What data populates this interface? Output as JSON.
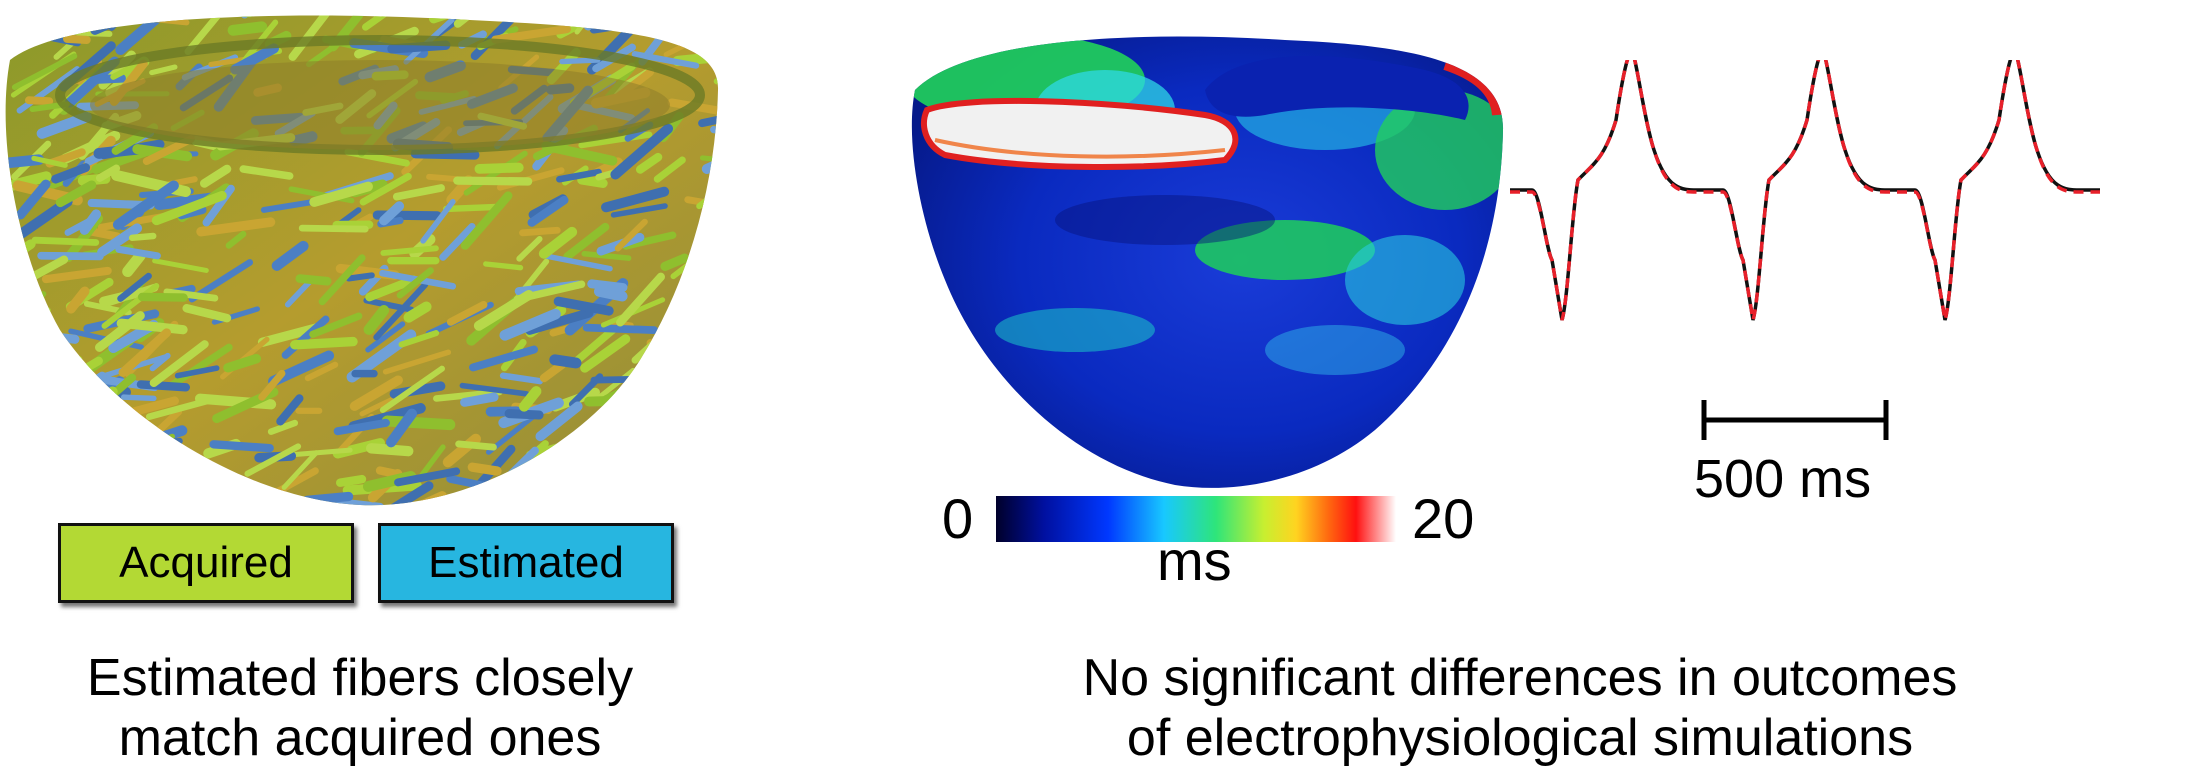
{
  "left_panel": {
    "legend": {
      "acquired": {
        "label": "Acquired",
        "color": "#b3d934"
      },
      "estimated": {
        "label": "Estimated",
        "color": "#27b6e0"
      }
    },
    "caption_line1": "Estimated fibers closely",
    "caption_line2": "match acquired ones"
  },
  "right_panel": {
    "colorbar": {
      "min_label": "0",
      "max_label": "20",
      "unit_label": "ms"
    },
    "trace": {
      "scale_label": "500 ms",
      "acquired_color": "#111111",
      "estimated_color": "#e8202a"
    },
    "caption_line1": "No significant differences in outcomes",
    "caption_line2": "of electrophysiological simulations"
  }
}
